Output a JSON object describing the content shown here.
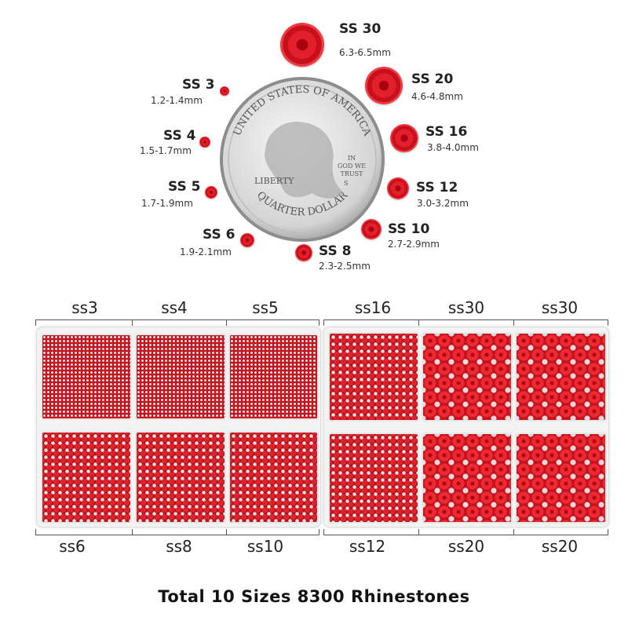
{
  "size_chart": [
    {
      "name": "SS 30",
      "mm": "6.3-6.5mm"
    },
    {
      "name": "SS 20",
      "mm": "4.6-4.8mm"
    },
    {
      "name": "SS 16",
      "mm": "3.8-4.0mm"
    },
    {
      "name": "SS 12",
      "mm": "3.0-3.2mm"
    },
    {
      "name": "SS 10",
      "mm": "2.7-2.9mm"
    },
    {
      "name": "SS 8",
      "mm": "2.3-2.5mm"
    },
    {
      "name": "SS 6",
      "mm": "1.9-2.1mm"
    },
    {
      "name": "SS 5",
      "mm": "1.7-1.9mm"
    },
    {
      "name": "SS 4",
      "mm": "1.5-1.7mm"
    },
    {
      "name": "SS 3",
      "mm": "1.2-1.4mm"
    }
  ],
  "coin": {
    "top_text": "UNITED STATES OF AMERICA",
    "bottom_text": "QUARTER DOLLAR",
    "liberty": "LIBERTY",
    "motto": [
      "IN",
      "GOD WE",
      "TRUST"
    ],
    "mint": "S"
  },
  "left_tray": {
    "top_labels": [
      "ss3",
      "ss4",
      "ss5"
    ],
    "bottom_labels": [
      "ss6",
      "ss8",
      "ss10"
    ]
  },
  "right_tray": {
    "top_labels": [
      "ss16",
      "ss30",
      "ss30"
    ],
    "bottom_labels": [
      "ss12",
      "ss20",
      "ss20"
    ]
  },
  "caption": "Total 10 Sizes 8300 Rhinestones",
  "colors": {
    "rhinestone": "#e2202c"
  }
}
